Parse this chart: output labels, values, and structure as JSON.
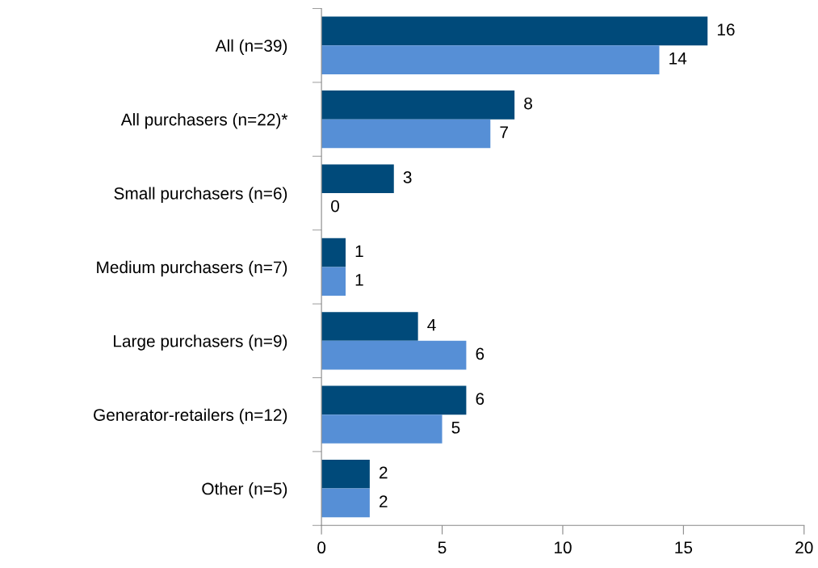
{
  "chart_data": {
    "type": "bar",
    "orientation": "horizontal",
    "categories": [
      "All (n=39)",
      "All purchasers (n=22)*",
      "Small purchasers (n=6)",
      "Medium purchasers (n=7)",
      "Large purchasers (n=9)",
      "Generator-retailers (n=12)",
      "Other (n=5)"
    ],
    "series": [
      {
        "color": "#004a7a",
        "values": [
          16,
          8,
          3,
          1,
          4,
          6,
          2
        ]
      },
      {
        "color": "#568fd6",
        "values": [
          14,
          7,
          0,
          1,
          6,
          5,
          2
        ]
      }
    ],
    "xlim": [
      0,
      20
    ],
    "xticks": [
      0,
      5,
      10,
      15,
      20
    ],
    "grid": false,
    "legend": false,
    "data_labels": true
  }
}
